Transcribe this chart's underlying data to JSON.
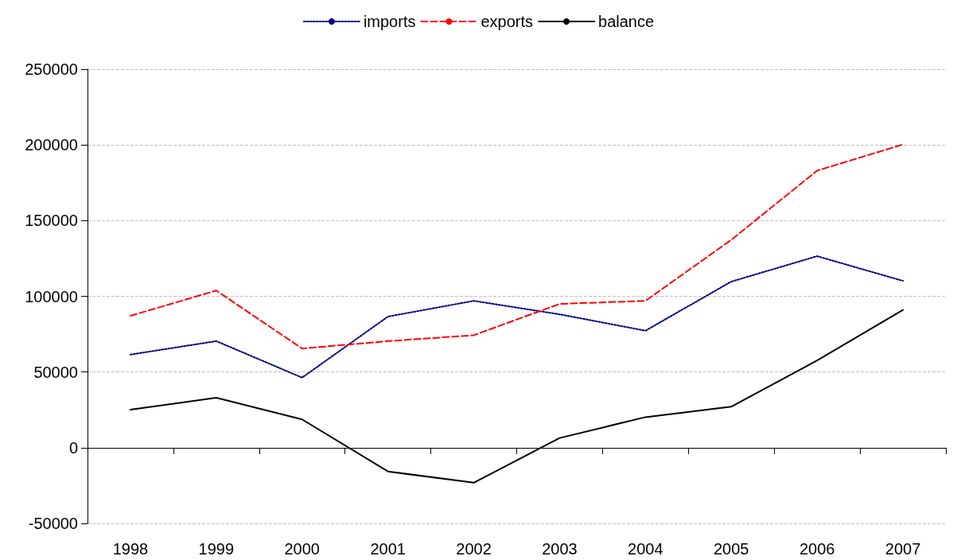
{
  "chart_data": {
    "type": "line",
    "categories": [
      "1998",
      "1999",
      "2000",
      "2001",
      "2002",
      "2003",
      "2004",
      "2005",
      "2006",
      "2007"
    ],
    "series": [
      {
        "name": "imports",
        "color": "#000080",
        "line_style": "dotted",
        "values": [
          61500,
          70400,
          46300,
          86600,
          97000,
          88100,
          77300,
          109700,
          126500,
          110200
        ]
      },
      {
        "name": "exports",
        "color": "#ff0000",
        "line_style": "dashed",
        "values": [
          87100,
          103800,
          65500,
          70400,
          74300,
          95000,
          97000,
          137300,
          183000,
          200300
        ]
      },
      {
        "name": "balance",
        "color": "#000000",
        "line_style": "solid",
        "values": [
          25100,
          33000,
          18700,
          -15700,
          -23100,
          6400,
          20200,
          27100,
          57600,
          91000
        ]
      }
    ],
    "ylim": [
      -50000,
      250000
    ],
    "yticks": [
      -50000,
      0,
      50000,
      100000,
      150000,
      200000,
      250000
    ],
    "grid": "y",
    "legend": "top",
    "marker": "none"
  }
}
